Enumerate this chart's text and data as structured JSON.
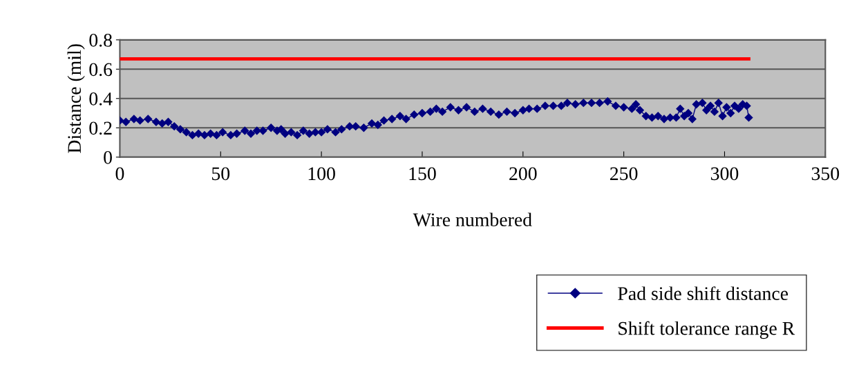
{
  "chart_data": {
    "type": "line",
    "xlabel": "Wire numbered",
    "ylabel": "Distance (mil)",
    "xlim": [
      0,
      350
    ],
    "xticks": [
      0,
      50,
      100,
      150,
      200,
      250,
      300,
      350
    ],
    "ylim": [
      0,
      0.8
    ],
    "yticks": [
      0,
      0.2,
      0.4,
      0.6,
      0.8
    ],
    "grid": "y",
    "legend": "bottom right",
    "series": [
      {
        "name": "Pad side shift distance",
        "color": "#000080",
        "marker": "diamond",
        "line_style": "solid",
        "x": [
          0,
          3,
          7,
          10,
          14,
          18,
          21,
          24,
          27,
          30,
          33,
          36,
          39,
          42,
          45,
          48,
          51,
          55,
          58,
          62,
          65,
          68,
          71,
          75,
          78,
          80,
          82,
          85,
          88,
          91,
          94,
          97,
          100,
          103,
          107,
          110,
          114,
          117,
          121,
          125,
          128,
          131,
          135,
          139,
          142,
          146,
          150,
          154,
          157,
          160,
          164,
          168,
          172,
          176,
          180,
          184,
          188,
          192,
          196,
          200,
          203,
          207,
          211,
          215,
          219,
          222,
          226,
          230,
          234,
          238,
          242,
          246,
          250,
          254,
          256,
          258,
          261,
          264,
          267,
          270,
          273,
          276,
          278,
          280,
          282,
          284,
          286,
          289,
          291,
          293,
          295,
          297,
          299,
          301,
          303,
          305,
          307,
          309,
          311,
          312
        ],
        "values": [
          0.25,
          0.24,
          0.26,
          0.25,
          0.26,
          0.24,
          0.23,
          0.24,
          0.21,
          0.19,
          0.17,
          0.15,
          0.16,
          0.15,
          0.16,
          0.15,
          0.17,
          0.15,
          0.16,
          0.18,
          0.16,
          0.18,
          0.18,
          0.2,
          0.18,
          0.19,
          0.16,
          0.17,
          0.15,
          0.18,
          0.16,
          0.17,
          0.17,
          0.19,
          0.17,
          0.19,
          0.21,
          0.21,
          0.2,
          0.23,
          0.22,
          0.25,
          0.26,
          0.28,
          0.26,
          0.29,
          0.3,
          0.31,
          0.33,
          0.31,
          0.34,
          0.32,
          0.34,
          0.31,
          0.33,
          0.31,
          0.29,
          0.31,
          0.3,
          0.32,
          0.33,
          0.33,
          0.35,
          0.35,
          0.35,
          0.37,
          0.36,
          0.37,
          0.37,
          0.37,
          0.38,
          0.35,
          0.34,
          0.33,
          0.36,
          0.32,
          0.28,
          0.27,
          0.28,
          0.26,
          0.27,
          0.27,
          0.33,
          0.28,
          0.3,
          0.26,
          0.36,
          0.37,
          0.32,
          0.35,
          0.31,
          0.37,
          0.28,
          0.34,
          0.3,
          0.35,
          0.33,
          0.36,
          0.35,
          0.27
        ]
      },
      {
        "name": "Shift tolerance range R",
        "color": "#ff0000",
        "marker": "none",
        "line_style": "solid",
        "x": [
          0,
          312
        ],
        "values": [
          0.67,
          0.67
        ]
      }
    ]
  }
}
